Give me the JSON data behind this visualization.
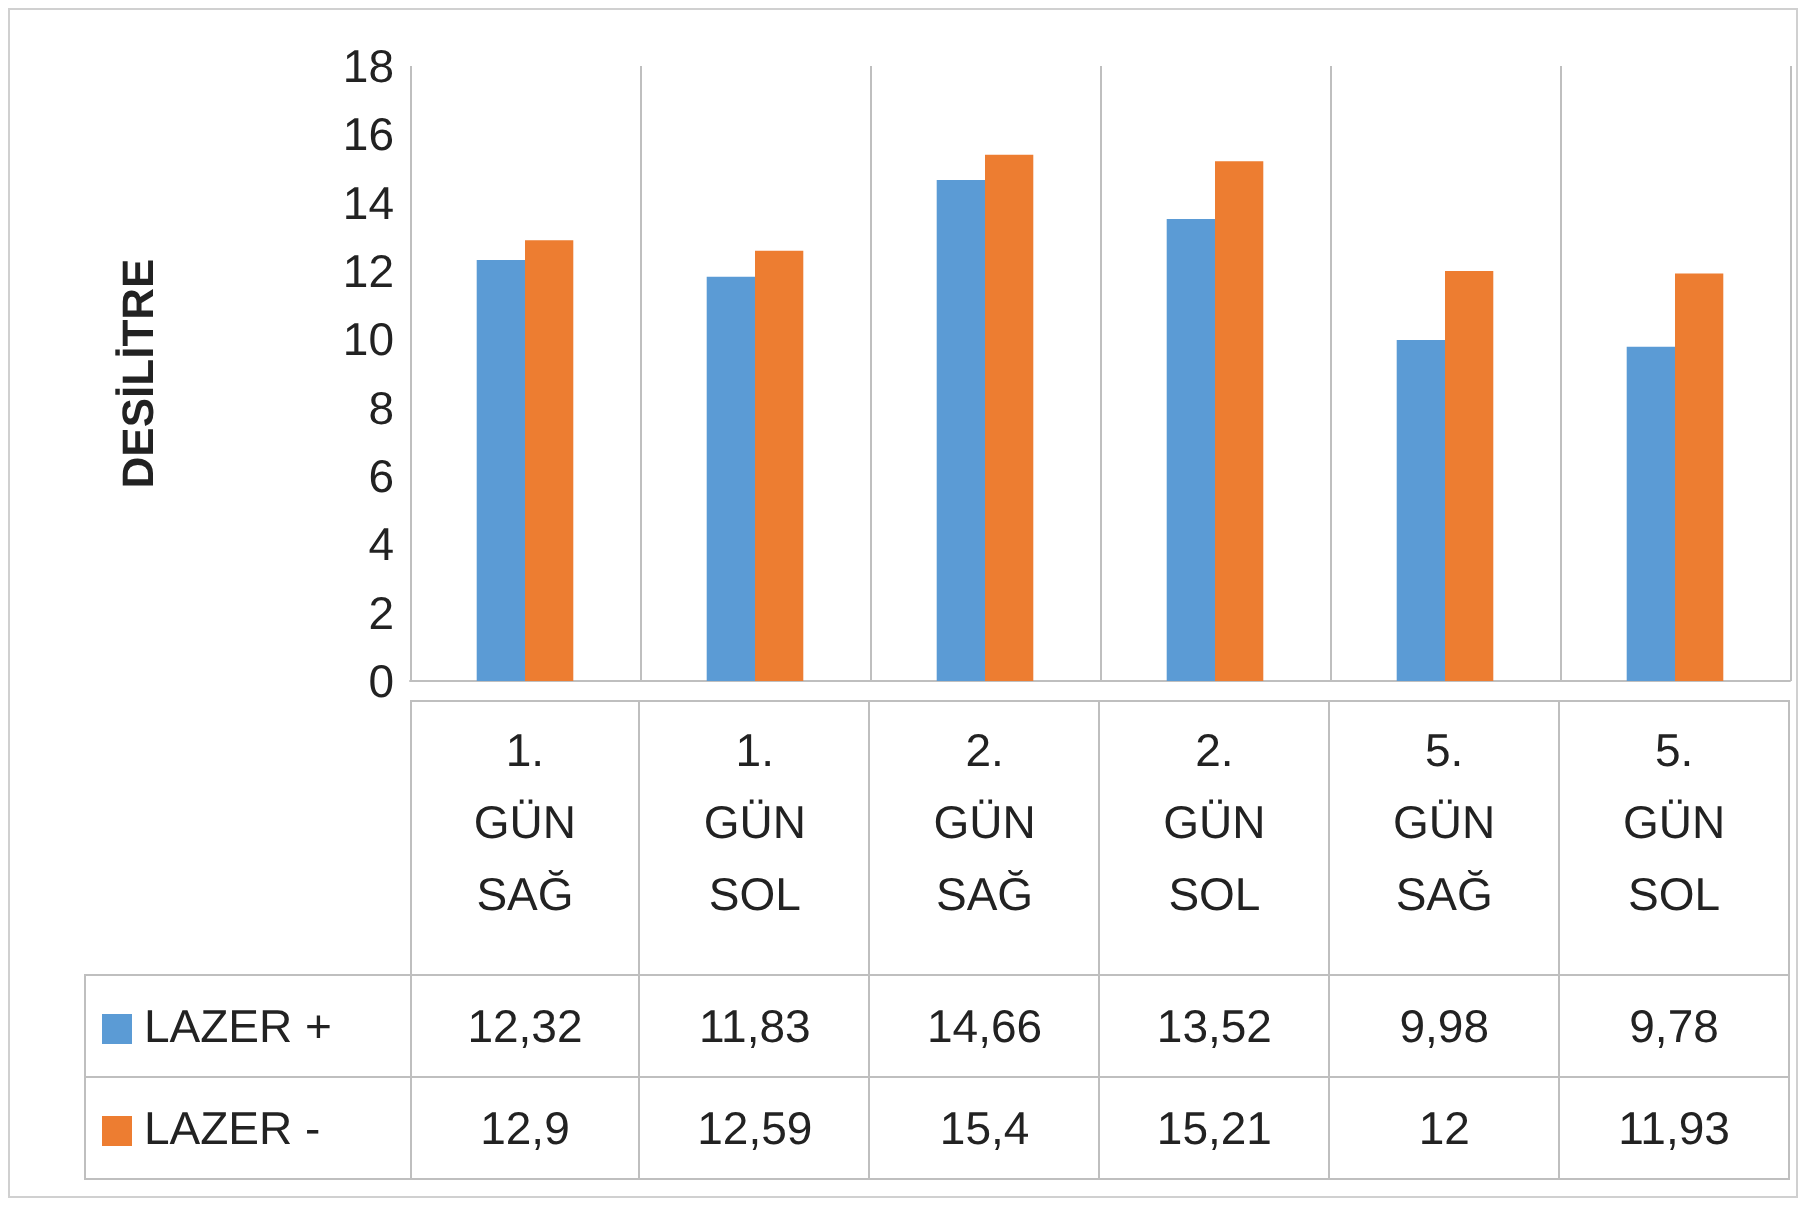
{
  "chart_data": {
    "type": "bar",
    "ylabel": "DESİLİTRE",
    "categories": [
      "1. GÜN SAĞ",
      "1. GÜN SOL",
      "2. GÜN SAĞ",
      "2. GÜN SOL",
      "5. GÜN SAĞ",
      "5. GÜN SOL"
    ],
    "series": [
      {
        "name": "LAZER +",
        "color": "#5b9bd5",
        "values": [
          12.32,
          11.83,
          14.66,
          13.52,
          9.98,
          9.78
        ],
        "value_labels": [
          "12,32",
          "11,83",
          "14,66",
          "13,52",
          "9,98",
          "9,78"
        ]
      },
      {
        "name": "LAZER -",
        "color": "#ed7d31",
        "values": [
          12.9,
          12.59,
          15.4,
          15.21,
          12,
          11.93
        ],
        "value_labels": [
          "12,9",
          "12,59",
          "15,4",
          "15,21",
          "12",
          "11,93"
        ]
      }
    ],
    "ylim": [
      0,
      18
    ],
    "yticks": [
      0,
      2,
      4,
      6,
      8,
      10,
      12,
      14,
      16,
      18
    ],
    "grid": "x",
    "legend": "bottom"
  }
}
